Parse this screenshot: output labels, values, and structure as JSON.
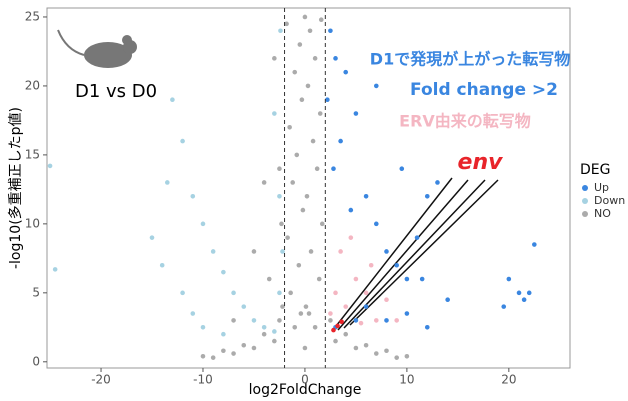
{
  "chart_data": {
    "type": "scatter",
    "xlabel": "log2FoldChange",
    "ylabel": "-log10(多重補正したp値)",
    "xlim": [
      -25.3,
      26
    ],
    "ylim": [
      -0.45,
      25.65
    ],
    "xticks": [
      -20,
      -10,
      0,
      10,
      20
    ],
    "yticks": [
      0,
      5,
      10,
      15,
      20,
      25
    ],
    "vlines": [
      -2,
      2
    ],
    "legend_title": "DEG",
    "series": [
      {
        "name": "Up",
        "color": "#3a86e0",
        "x": [
          2.5,
          3,
          4,
          2.2,
          5,
          3.5,
          2.8,
          6,
          4.5,
          7,
          8,
          9,
          10,
          11,
          12,
          13,
          11.5,
          14,
          8,
          10,
          12,
          6,
          5,
          3,
          20,
          21,
          21.5,
          22,
          19.5,
          22.5,
          7,
          9.5
        ],
        "y": [
          24,
          22,
          21,
          19,
          18,
          16,
          14,
          12,
          11,
          10,
          8,
          7,
          6,
          9,
          12,
          13,
          6,
          4.5,
          3,
          3.5,
          2.5,
          4,
          3,
          2.5,
          6,
          5,
          4.5,
          5,
          4,
          8.5,
          20,
          14
        ]
      },
      {
        "name": "Down",
        "color": "#a6d2e2",
        "x": [
          -25,
          -24.5,
          -13,
          -12,
          -11,
          -10,
          -9,
          -8,
          -7,
          -6,
          -5,
          -4,
          -3,
          -2.5,
          -2.2,
          -2.5,
          -3,
          -2.4,
          -15,
          -14,
          -12,
          -11,
          -10,
          -8,
          -13.5
        ],
        "y": [
          14.2,
          6.7,
          19,
          16,
          12,
          10,
          8,
          6.5,
          5,
          4,
          3,
          2.5,
          2.2,
          5,
          8,
          12,
          18,
          24,
          9,
          7,
          5,
          3.5,
          2.5,
          2,
          13
        ]
      },
      {
        "name": "NO",
        "color": "#ababab",
        "x": [
          0,
          0.5,
          -0.5,
          1,
          -1,
          0.3,
          -0.3,
          1.5,
          -1.5,
          0.8,
          -0.8,
          1.2,
          -1.2,
          0.2,
          -0.2,
          1.7,
          -1.7,
          0.6,
          -0.6,
          1.4,
          -1.4,
          0.1,
          -2.5,
          2.5,
          -4,
          4,
          -6,
          6,
          -8,
          8,
          -10,
          10,
          -3,
          3,
          -5,
          5,
          -7,
          7,
          -9,
          9,
          -1,
          1,
          0,
          -0.4,
          0.4,
          -1.8,
          1.6,
          -3,
          -2.5,
          -2.3,
          -3.5,
          -4,
          -5,
          -2.2,
          -7
        ],
        "y": [
          25,
          24,
          23,
          22,
          21,
          20,
          19,
          18,
          17,
          16,
          15,
          14,
          13,
          12,
          11,
          10,
          9,
          8,
          7,
          6,
          5,
          4,
          3,
          3,
          2,
          2,
          1.2,
          1.2,
          0.8,
          0.8,
          0.4,
          0.4,
          1.5,
          1.5,
          1,
          1,
          0.6,
          0.6,
          0.3,
          0.3,
          2.5,
          2.5,
          1,
          3.5,
          3.5,
          24.5,
          24.8,
          22,
          14,
          10,
          6,
          13,
          8,
          4,
          3
        ]
      }
    ],
    "highlights": [
      {
        "color": "#f4b6c2",
        "x": [
          3,
          4,
          5,
          6,
          7,
          8,
          9,
          2.5,
          3.5,
          5.5,
          4.5,
          6.5
        ],
        "y": [
          5,
          4,
          6,
          5,
          3,
          4.5,
          3,
          3.5,
          8,
          2.8,
          9,
          7
        ]
      },
      {
        "color": "#e8242a",
        "x": [
          2.8,
          3.2,
          3.6
        ],
        "y": [
          2.3,
          2.6,
          2.9
        ]
      }
    ],
    "annotations": [
      "D1 vs D0",
      "D1で発現が上がった転写物",
      "Fold change >2",
      "ERV由来の転写物",
      "env"
    ]
  }
}
